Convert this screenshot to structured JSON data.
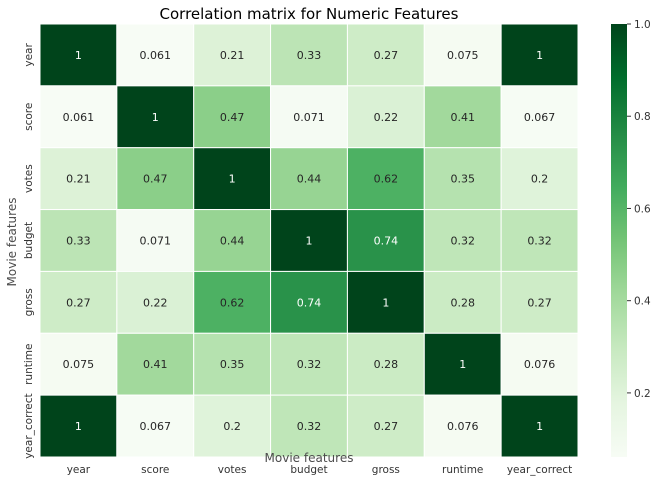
{
  "chart_data": {
    "type": "heatmap",
    "title": "Correlation matrix for Numeric Features",
    "xlabel": "Movie features",
    "ylabel": "Movie features",
    "x_categories": [
      "year",
      "score",
      "votes",
      "budget",
      "gross",
      "runtime",
      "year_correct"
    ],
    "y_categories": [
      "year",
      "score",
      "votes",
      "budget",
      "gross",
      "runtime",
      "year_correct"
    ],
    "values": [
      [
        1,
        0.061,
        0.21,
        0.33,
        0.27,
        0.075,
        1
      ],
      [
        0.061,
        1,
        0.47,
        0.071,
        0.22,
        0.41,
        0.067
      ],
      [
        0.21,
        0.47,
        1,
        0.44,
        0.62,
        0.35,
        0.2
      ],
      [
        0.33,
        0.071,
        0.44,
        1,
        0.74,
        0.32,
        0.32
      ],
      [
        0.27,
        0.22,
        0.62,
        0.74,
        1,
        0.28,
        0.27
      ],
      [
        0.075,
        0.41,
        0.35,
        0.32,
        0.28,
        1,
        0.076
      ],
      [
        1,
        0.067,
        0.2,
        0.32,
        0.27,
        0.076,
        1
      ]
    ],
    "labels": [
      [
        "1",
        "0.061",
        "0.21",
        "0.33",
        "0.27",
        "0.075",
        "1"
      ],
      [
        "0.061",
        "1",
        "0.47",
        "0.071",
        "0.22",
        "0.41",
        "0.067"
      ],
      [
        "0.21",
        "0.47",
        "1",
        "0.44",
        "0.62",
        "0.35",
        "0.2"
      ],
      [
        "0.33",
        "0.071",
        "0.44",
        "1",
        "0.74",
        "0.32",
        "0.32"
      ],
      [
        "0.27",
        "0.22",
        "0.62",
        "0.74",
        "1",
        "0.28",
        "0.27"
      ],
      [
        "0.075",
        "0.41",
        "0.35",
        "0.32",
        "0.28",
        "1",
        "0.076"
      ],
      [
        "1",
        "0.067",
        "0.2",
        "0.32",
        "0.27",
        "0.076",
        "1"
      ]
    ],
    "colormap": "Greens",
    "colorbar": {
      "range": [
        0.061,
        1.0
      ],
      "ticks": [
        0.2,
        0.4,
        0.6,
        0.8,
        1.0
      ],
      "tick_labels": [
        "0.2",
        "0.4",
        "0.6",
        "0.8",
        "1.0"
      ]
    },
    "colors": {
      "low": "#f7fcf5",
      "high": "#00441b",
      "text_dark": "#262626",
      "text_light": "#ffffff",
      "cell_border": "#ffffff"
    }
  }
}
